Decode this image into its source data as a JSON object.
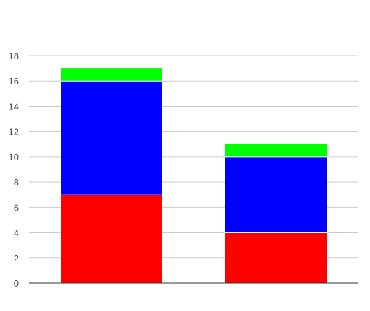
{
  "chart_data": {
    "type": "bar",
    "stacked": true,
    "categories": [
      "",
      ""
    ],
    "series": [
      {
        "color": "#ff0000",
        "values": [
          7,
          4
        ]
      },
      {
        "color": "#0000ff",
        "values": [
          9,
          6
        ]
      },
      {
        "color": "#00ff00",
        "values": [
          1,
          1
        ]
      }
    ],
    "title": "",
    "xlabel": "",
    "ylabel": "",
    "ylim": [
      0,
      18
    ],
    "yticks": [
      0,
      2,
      4,
      6,
      8,
      10,
      12,
      14,
      16,
      18
    ],
    "grid": true,
    "legend": "none",
    "colors": {
      "grid": "#cccccc",
      "axis": "#333333",
      "tick_text": "#444444",
      "background": "#ffffff"
    }
  }
}
